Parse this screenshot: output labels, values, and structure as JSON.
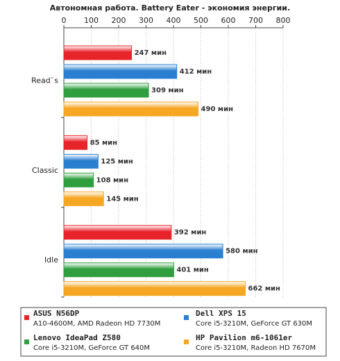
{
  "chart_data": {
    "type": "bar",
    "orientation": "horizontal",
    "title": "Автономная работа. Battery Eater - экономия энергии.",
    "categories": [
      "Read`s",
      "Classic",
      "Idle"
    ],
    "xlim": [
      0,
      800
    ],
    "xticks": [
      0,
      100,
      200,
      300,
      400,
      500,
      600,
      700,
      800
    ],
    "grid": true,
    "series": [
      {
        "name": "ASUS N56DP",
        "subtitle": "A10-4600M, AMD Radeon HD 7730M",
        "color": "#e8242b",
        "values": [
          247,
          85,
          392
        ],
        "value_labels": [
          "247 мин",
          "85 мин",
          "392 мин"
        ]
      },
      {
        "name": "Dell XPS 15",
        "subtitle": "Core i5-3210M, GeForce GT 630M",
        "color": "#2a7fd0",
        "values": [
          412,
          125,
          580
        ],
        "value_labels": [
          "412 мин",
          "125 мин",
          "580 мин"
        ]
      },
      {
        "name": "Lenovo IdeaPad Z580",
        "subtitle": "Core i5-3210M, GeForce GT 640M",
        "color": "#2e9e3e",
        "values": [
          309,
          108,
          401
        ],
        "value_labels": [
          "309 мин",
          "108 мин",
          "401 мин"
        ]
      },
      {
        "name": "HP Pavilion m6-1061er",
        "subtitle": "Core i5-3210M, Radeon HD 7670M",
        "color": "#f5a623",
        "values": [
          490,
          145,
          662
        ],
        "value_labels": [
          "490 мин",
          "145 мин",
          "662 мин"
        ]
      }
    ]
  }
}
